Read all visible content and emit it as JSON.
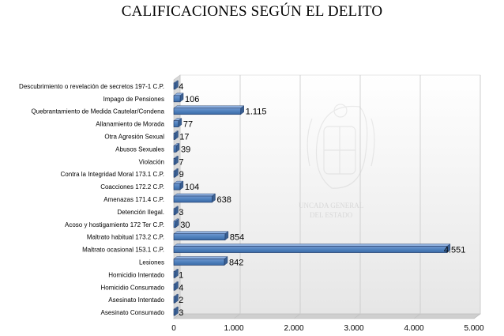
{
  "chart_data": {
    "type": "bar",
    "orientation": "horizontal",
    "title": "CALIFICACIONES SEGÚN EL DELITO",
    "categories": [
      "Descubrimiento o revelación de secretos 197-1 C.P.",
      "Impago de Pensiones",
      "Quebrantamiento de Medida Cautelar/Condena",
      "Allanamiento de Morada",
      "Otra Agresión Sexual",
      "Abusos Sexuales",
      "Violación",
      "Contra la Integridad Moral 173.1 C.P.",
      "Coacciones 172.2 C.P.",
      "Amenazas 171.4 C.P.",
      "Detención Ilegal.",
      "Acoso y hostigamiento 172 Ter C.P.",
      "Maltrato habitual 173.2 C.P.",
      "Maltrato ocasional 153.1 C.P.",
      "Lesiones",
      "Homicidio Intentado",
      "Homicidio Consumado",
      "Asesinato Intentado",
      "Asesinato Consumado"
    ],
    "values": [
      4,
      106,
      1115,
      77,
      17,
      39,
      7,
      9,
      104,
      638,
      3,
      30,
      854,
      4551,
      842,
      1,
      4,
      2,
      3
    ],
    "value_labels": [
      "4",
      "106",
      "1.115",
      "77",
      "17",
      "39",
      "7",
      "9",
      "104",
      "638",
      "3",
      "30",
      "854",
      "4.551",
      "842",
      "1",
      "4",
      "2",
      "3"
    ],
    "xlim": [
      0,
      5000
    ],
    "x_ticks": [
      0,
      1000,
      2000,
      3000,
      4000,
      5000
    ],
    "x_tick_labels": [
      "0",
      "1.000",
      "2.000",
      "3.000",
      "4.000",
      "5.000"
    ],
    "xlabel": "",
    "ylabel": "",
    "grid": true,
    "legend": "none",
    "bar_color": "#4f81bd",
    "bar_edge_color": "#1f3864"
  },
  "watermark": {
    "line1": "UNCADA GENERAL",
    "line2": "DEL ESTADO"
  }
}
